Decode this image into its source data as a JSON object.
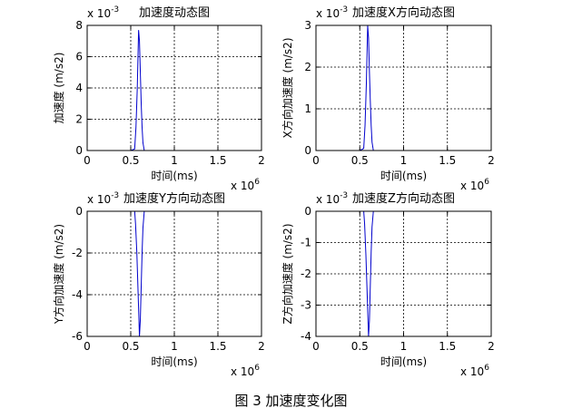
{
  "figure_caption": "图 3  加速度变化图",
  "chart_data": [
    {
      "type": "line",
      "title": "加速度动态图",
      "xlabel": "时间(ms)",
      "ylabel": "加速度 (m/s2)",
      "x_exponent": "x 10",
      "x_exponent_power": "6",
      "y_exponent": "x 10",
      "y_exponent_power": "-3",
      "xlim": [
        0,
        2
      ],
      "ylim": [
        0,
        8
      ],
      "x_ticks": [
        0,
        0.5,
        1,
        1.5,
        2
      ],
      "x_tick_labels": [
        "0",
        "0.5",
        "1",
        "1.5",
        "2"
      ],
      "y_ticks": [
        0,
        2,
        4,
        6,
        8
      ],
      "y_tick_labels": [
        "0",
        "2",
        "4",
        "6",
        "8"
      ],
      "grid": true,
      "line_color": "#0000cc",
      "series": [
        {
          "x": [
            0,
            0.5,
            0.545,
            0.56,
            0.575,
            0.59,
            0.6,
            0.61,
            0.62,
            0.63,
            0.64,
            0.655,
            0.7,
            1.2,
            2
          ],
          "y": [
            0,
            0,
            0.1,
            1.5,
            4.0,
            7.7,
            7.0,
            5.0,
            3.0,
            1.5,
            0.5,
            0,
            0,
            0,
            0
          ]
        }
      ]
    },
    {
      "type": "line",
      "title": "加速度X方向动态图",
      "xlabel": "时间(ms)",
      "ylabel": "X方向加速度 (m/s2)",
      "x_exponent": "x 10",
      "x_exponent_power": "6",
      "y_exponent": "x 10",
      "y_exponent_power": "-3",
      "xlim": [
        0,
        2
      ],
      "ylim": [
        0,
        3
      ],
      "x_ticks": [
        0,
        0.5,
        1,
        1.5,
        2
      ],
      "x_tick_labels": [
        "0",
        "0.5",
        "1",
        "1.5",
        "2"
      ],
      "y_ticks": [
        0,
        1,
        2,
        3
      ],
      "y_tick_labels": [
        "0",
        "1",
        "2",
        "3"
      ],
      "grid": true,
      "line_color": "#0000cc",
      "series": [
        {
          "x": [
            0,
            0.5,
            0.545,
            0.56,
            0.575,
            0.59,
            0.6,
            0.61,
            0.62,
            0.63,
            0.64,
            0.655,
            0.7,
            1.2,
            2
          ],
          "y": [
            0,
            0,
            0.05,
            0.6,
            1.6,
            3.0,
            2.7,
            1.9,
            1.2,
            0.6,
            0.2,
            0,
            0,
            0,
            0
          ]
        }
      ]
    },
    {
      "type": "line",
      "title": "加速度Y方向动态图",
      "xlabel": "时间(ms)",
      "ylabel": "Y方向加速度 (m/s2)",
      "x_exponent": "x 10",
      "x_exponent_power": "6",
      "y_exponent": "x 10",
      "y_exponent_power": "-3",
      "xlim": [
        0,
        2
      ],
      "ylim": [
        -6,
        0
      ],
      "x_ticks": [
        0,
        0.5,
        1,
        1.5,
        2
      ],
      "x_tick_labels": [
        "0",
        "0.5",
        "1",
        "1.5",
        "2"
      ],
      "y_ticks": [
        -6,
        -4,
        -2,
        0
      ],
      "y_tick_labels": [
        "-6",
        "-4",
        "-2",
        "0"
      ],
      "grid": true,
      "line_color": "#0000cc",
      "series": [
        {
          "x": [
            0.545,
            0.555,
            0.57,
            0.585,
            0.6,
            0.61,
            0.62,
            0.63,
            0.64,
            0.655
          ],
          "y": [
            0,
            -0.6,
            -2.0,
            -4.0,
            -6.0,
            -5.2,
            -3.6,
            -2.0,
            -0.8,
            0
          ]
        }
      ]
    },
    {
      "type": "line",
      "title": "加速度Z方向动态图",
      "xlabel": "时间(ms)",
      "ylabel": "Z方向加速度 (m/s2)",
      "x_exponent": "x 10",
      "x_exponent_power": "6",
      "y_exponent": "x 10",
      "y_exponent_power": "-3",
      "xlim": [
        0,
        2
      ],
      "ylim": [
        -4,
        0
      ],
      "x_ticks": [
        0,
        0.5,
        1,
        1.5,
        2
      ],
      "x_tick_labels": [
        "0",
        "0.5",
        "1",
        "1.5",
        "2"
      ],
      "y_ticks": [
        -4,
        -3,
        -2,
        -1,
        0
      ],
      "y_tick_labels": [
        "-4",
        "-3",
        "-2",
        "-1",
        "0"
      ],
      "grid": true,
      "line_color": "#0000cc",
      "series": [
        {
          "x": [
            0.545,
            0.555,
            0.57,
            0.585,
            0.6,
            0.61,
            0.62,
            0.63,
            0.64,
            0.655
          ],
          "y": [
            0,
            -0.4,
            -1.4,
            -2.7,
            -4.0,
            -3.5,
            -2.4,
            -1.3,
            -0.5,
            0
          ]
        }
      ]
    }
  ]
}
